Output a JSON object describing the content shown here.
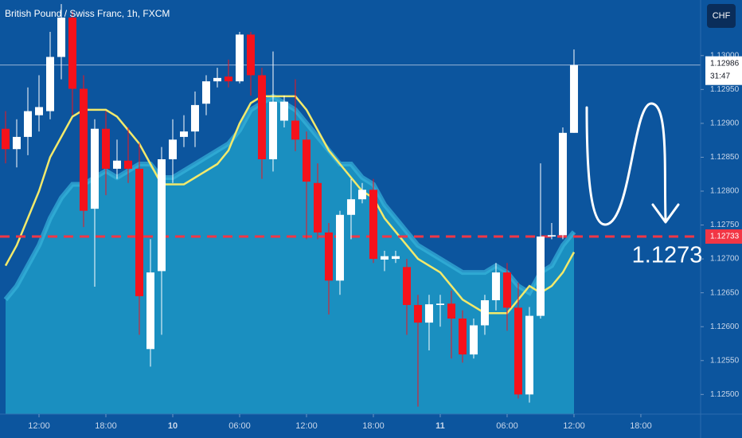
{
  "chart_data": {
    "type": "candlestick",
    "title": "British Pound / Swiss Franc, 1h, FXCM",
    "currency_button": "CHF",
    "x": [
      0,
      1,
      2,
      3,
      4,
      5,
      6,
      7,
      8,
      9,
      10,
      11,
      12,
      13,
      14,
      15,
      16,
      17,
      18,
      19,
      20,
      21,
      22,
      23,
      24,
      25,
      26,
      27,
      28,
      29,
      30,
      31,
      32,
      33,
      34,
      35,
      36,
      37,
      38,
      39,
      40,
      41,
      42,
      43,
      44,
      45,
      46,
      47,
      48,
      49,
      50,
      51
    ],
    "open": [
      1.12892,
      1.12862,
      1.1288,
      1.12912,
      1.12918,
      1.12998,
      1.13056,
      1.12951,
      1.12774,
      1.12892,
      1.12833,
      1.12845,
      1.12833,
      1.12567,
      1.12682,
      1.12847,
      1.1288,
      1.12888,
      1.12929,
      1.12962,
      1.12969,
      1.12962,
      1.13031,
      1.12971,
      1.12847,
      1.12904,
      1.12904,
      1.12876,
      1.12812,
      1.12739,
      1.12668,
      1.12765,
      1.12788,
      1.12802,
      1.12699,
      1.127,
      1.12688,
      1.12632,
      1.12606,
      1.12632,
      1.12634,
      1.12612,
      1.12559,
      1.12602,
      1.12639,
      1.1268,
      1.12628,
      1.125,
      1.12616,
      1.12733,
      1.12735,
      1.12886
    ],
    "high": [
      1.12918,
      1.12906,
      1.12953,
      1.12971,
      1.13035,
      1.13076,
      1.13065,
      1.12971,
      1.12906,
      1.12918,
      1.12876,
      1.12894,
      1.12871,
      1.12729,
      1.12865,
      1.12906,
      1.12912,
      1.12947,
      1.12971,
      1.12982,
      1.12994,
      1.13035,
      1.13035,
      1.12982,
      1.13006,
      1.12941,
      1.12965,
      1.12888,
      1.12841,
      1.12753,
      1.12771,
      1.12818,
      1.12812,
      1.12818,
      1.12712,
      1.12712,
      1.127,
      1.12647,
      1.12647,
      1.12647,
      1.12653,
      1.12624,
      1.12612,
      1.12647,
      1.12694,
      1.12694,
      1.12665,
      1.12629,
      1.12841,
      1.12753,
      1.12894,
      1.13009
    ],
    "low": [
      1.12841,
      1.12835,
      1.12853,
      1.12888,
      1.12906,
      1.12965,
      1.12912,
      1.12747,
      1.12659,
      1.12794,
      1.12818,
      1.12812,
      1.12588,
      1.12541,
      1.12588,
      1.12812,
      1.12865,
      1.12865,
      1.12912,
      1.12953,
      1.12953,
      1.12959,
      1.12941,
      1.12818,
      1.12829,
      1.12894,
      1.12859,
      1.12729,
      1.12729,
      1.12618,
      1.12647,
      1.12729,
      1.12782,
      1.12694,
      1.12682,
      1.12694,
      1.12588,
      1.12482,
      1.12565,
      1.126,
      1.12553,
      1.12547,
      1.12553,
      1.12588,
      1.12624,
      1.12594,
      1.12494,
      1.12488,
      1.12612,
      1.12729,
      1.12729,
      1.12886
    ],
    "close": [
      1.12862,
      1.1288,
      1.12918,
      1.12924,
      1.12998,
      1.13056,
      1.12951,
      1.12771,
      1.12892,
      1.12833,
      1.12845,
      1.12833,
      1.12645,
      1.1268,
      1.12847,
      1.12876,
      1.12888,
      1.12927,
      1.12962,
      1.12967,
      1.12962,
      1.13031,
      1.12971,
      1.12847,
      1.12932,
      1.12932,
      1.12876,
      1.12814,
      1.12739,
      1.12668,
      1.12765,
      1.12788,
      1.12802,
      1.127,
      1.12704,
      1.12704,
      1.12632,
      1.12606,
      1.12633,
      1.12634,
      1.12612,
      1.12559,
      1.12602,
      1.12639,
      1.1268,
      1.12628,
      1.125,
      1.12616,
      1.12733,
      1.12735,
      1.12886,
      1.12986
    ],
    "up_color": "#ffffff",
    "down_color": "#f5121b",
    "series": [
      {
        "color": "#1c96c3",
        "fill": true,
        "values": [
          1.1264,
          1.1266,
          1.1269,
          1.1272,
          1.1276,
          1.1279,
          1.1281,
          1.1281,
          1.1282,
          1.1283,
          1.1282,
          1.1283,
          1.1284,
          1.1284,
          1.1282,
          1.1282,
          1.1283,
          1.1284,
          1.1285,
          1.1286,
          1.1287,
          1.1289,
          1.1292,
          1.1293,
          1.1294,
          1.1293,
          1.1292,
          1.129,
          1.1288,
          1.1286,
          1.1284,
          1.1284,
          1.1282,
          1.1281,
          1.1278,
          1.1276,
          1.1274,
          1.1272,
          1.1271,
          1.127,
          1.1269,
          1.1268,
          1.1268,
          1.1268,
          1.1269,
          1.1268,
          1.1266,
          1.1265,
          1.1268,
          1.1269,
          1.1272,
          1.1274
        ]
      },
      {
        "color": "#f2e96b",
        "fill": false,
        "values": [
          1.1269,
          1.1272,
          1.1276,
          1.128,
          1.1285,
          1.1288,
          1.1291,
          1.1292,
          1.1292,
          1.1292,
          1.1291,
          1.1289,
          1.1287,
          1.1284,
          1.1281,
          1.1281,
          1.1281,
          1.1282,
          1.1283,
          1.1284,
          1.1286,
          1.129,
          1.1293,
          1.1294,
          1.1294,
          1.1294,
          1.1294,
          1.1292,
          1.1289,
          1.1286,
          1.1284,
          1.1282,
          1.128,
          1.1279,
          1.1276,
          1.1274,
          1.1272,
          1.127,
          1.1269,
          1.1268,
          1.1266,
          1.1264,
          1.1263,
          1.1262,
          1.1262,
          1.1262,
          1.1264,
          1.1266,
          1.1265,
          1.1266,
          1.1268,
          1.1271
        ]
      }
    ],
    "countdown": "31:47",
    "hline": {
      "value": 1.12733,
      "label": "1.12733",
      "color": "#f23645"
    },
    "annotation": "1.1273",
    "xlim": [
      -0.5,
      62.36
    ],
    "ylim": [
      1.12471,
      1.13082
    ],
    "xticks": [
      {
        "value": 3,
        "label": "12:00"
      },
      {
        "value": 9,
        "label": "18:00"
      },
      {
        "value": 15,
        "label": "10"
      },
      {
        "value": 21,
        "label": "06:00"
      },
      {
        "value": 27,
        "label": "12:00"
      },
      {
        "value": 33,
        "label": "18:00"
      },
      {
        "value": 39,
        "label": "11"
      },
      {
        "value": 45,
        "label": "06:00"
      },
      {
        "value": 51,
        "label": "12:00"
      },
      {
        "value": 57,
        "label": "18:00"
      }
    ],
    "yticks": [
      {
        "value": 1.125,
        "label": "1.12500"
      },
      {
        "value": 1.1255,
        "label": "1.12550"
      },
      {
        "value": 1.126,
        "label": "1.12600"
      },
      {
        "value": 1.1265,
        "label": "1.12650"
      },
      {
        "value": 1.127,
        "label": "1.12700"
      },
      {
        "value": 1.1275,
        "label": "1.12750"
      },
      {
        "value": 1.128,
        "label": "1.12800"
      },
      {
        "value": 1.1285,
        "label": "1.12850"
      },
      {
        "value": 1.129,
        "label": "1.12900"
      },
      {
        "value": 1.1295,
        "label": "1.12950"
      },
      {
        "value": 1.13,
        "label": "1.13000"
      }
    ],
    "grid": false
  }
}
